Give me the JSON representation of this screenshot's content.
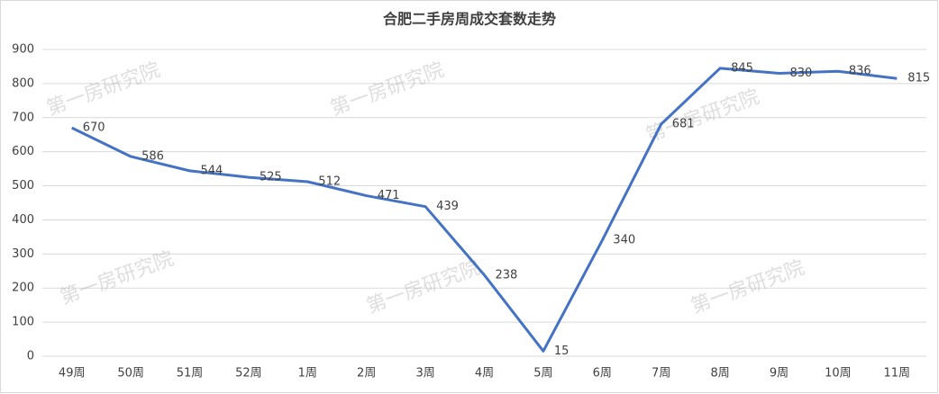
{
  "chart_data": {
    "type": "line",
    "title": "合肥二手房周成交套数走势",
    "categories": [
      "49周",
      "50周",
      "51周",
      "52周",
      "1周",
      "2周",
      "3周",
      "4周",
      "5周",
      "6周",
      "7周",
      "8周",
      "9周",
      "10周",
      "11周"
    ],
    "series": [
      {
        "name": "成交套数",
        "color": "#4472c4",
        "values": [
          670,
          586,
          544,
          525,
          512,
          471,
          439,
          238,
          15,
          340,
          681,
          845,
          830,
          836,
          815
        ]
      }
    ],
    "ylim": [
      0,
      900
    ],
    "yticks": [
      0,
      100,
      200,
      300,
      400,
      500,
      600,
      700,
      800,
      900
    ],
    "grid": true,
    "watermarks": [
      "第一房研究院",
      "第一房研究院",
      "第一房研究院",
      "第一房研究院",
      "第一房研究院",
      "第一房研究院"
    ]
  }
}
